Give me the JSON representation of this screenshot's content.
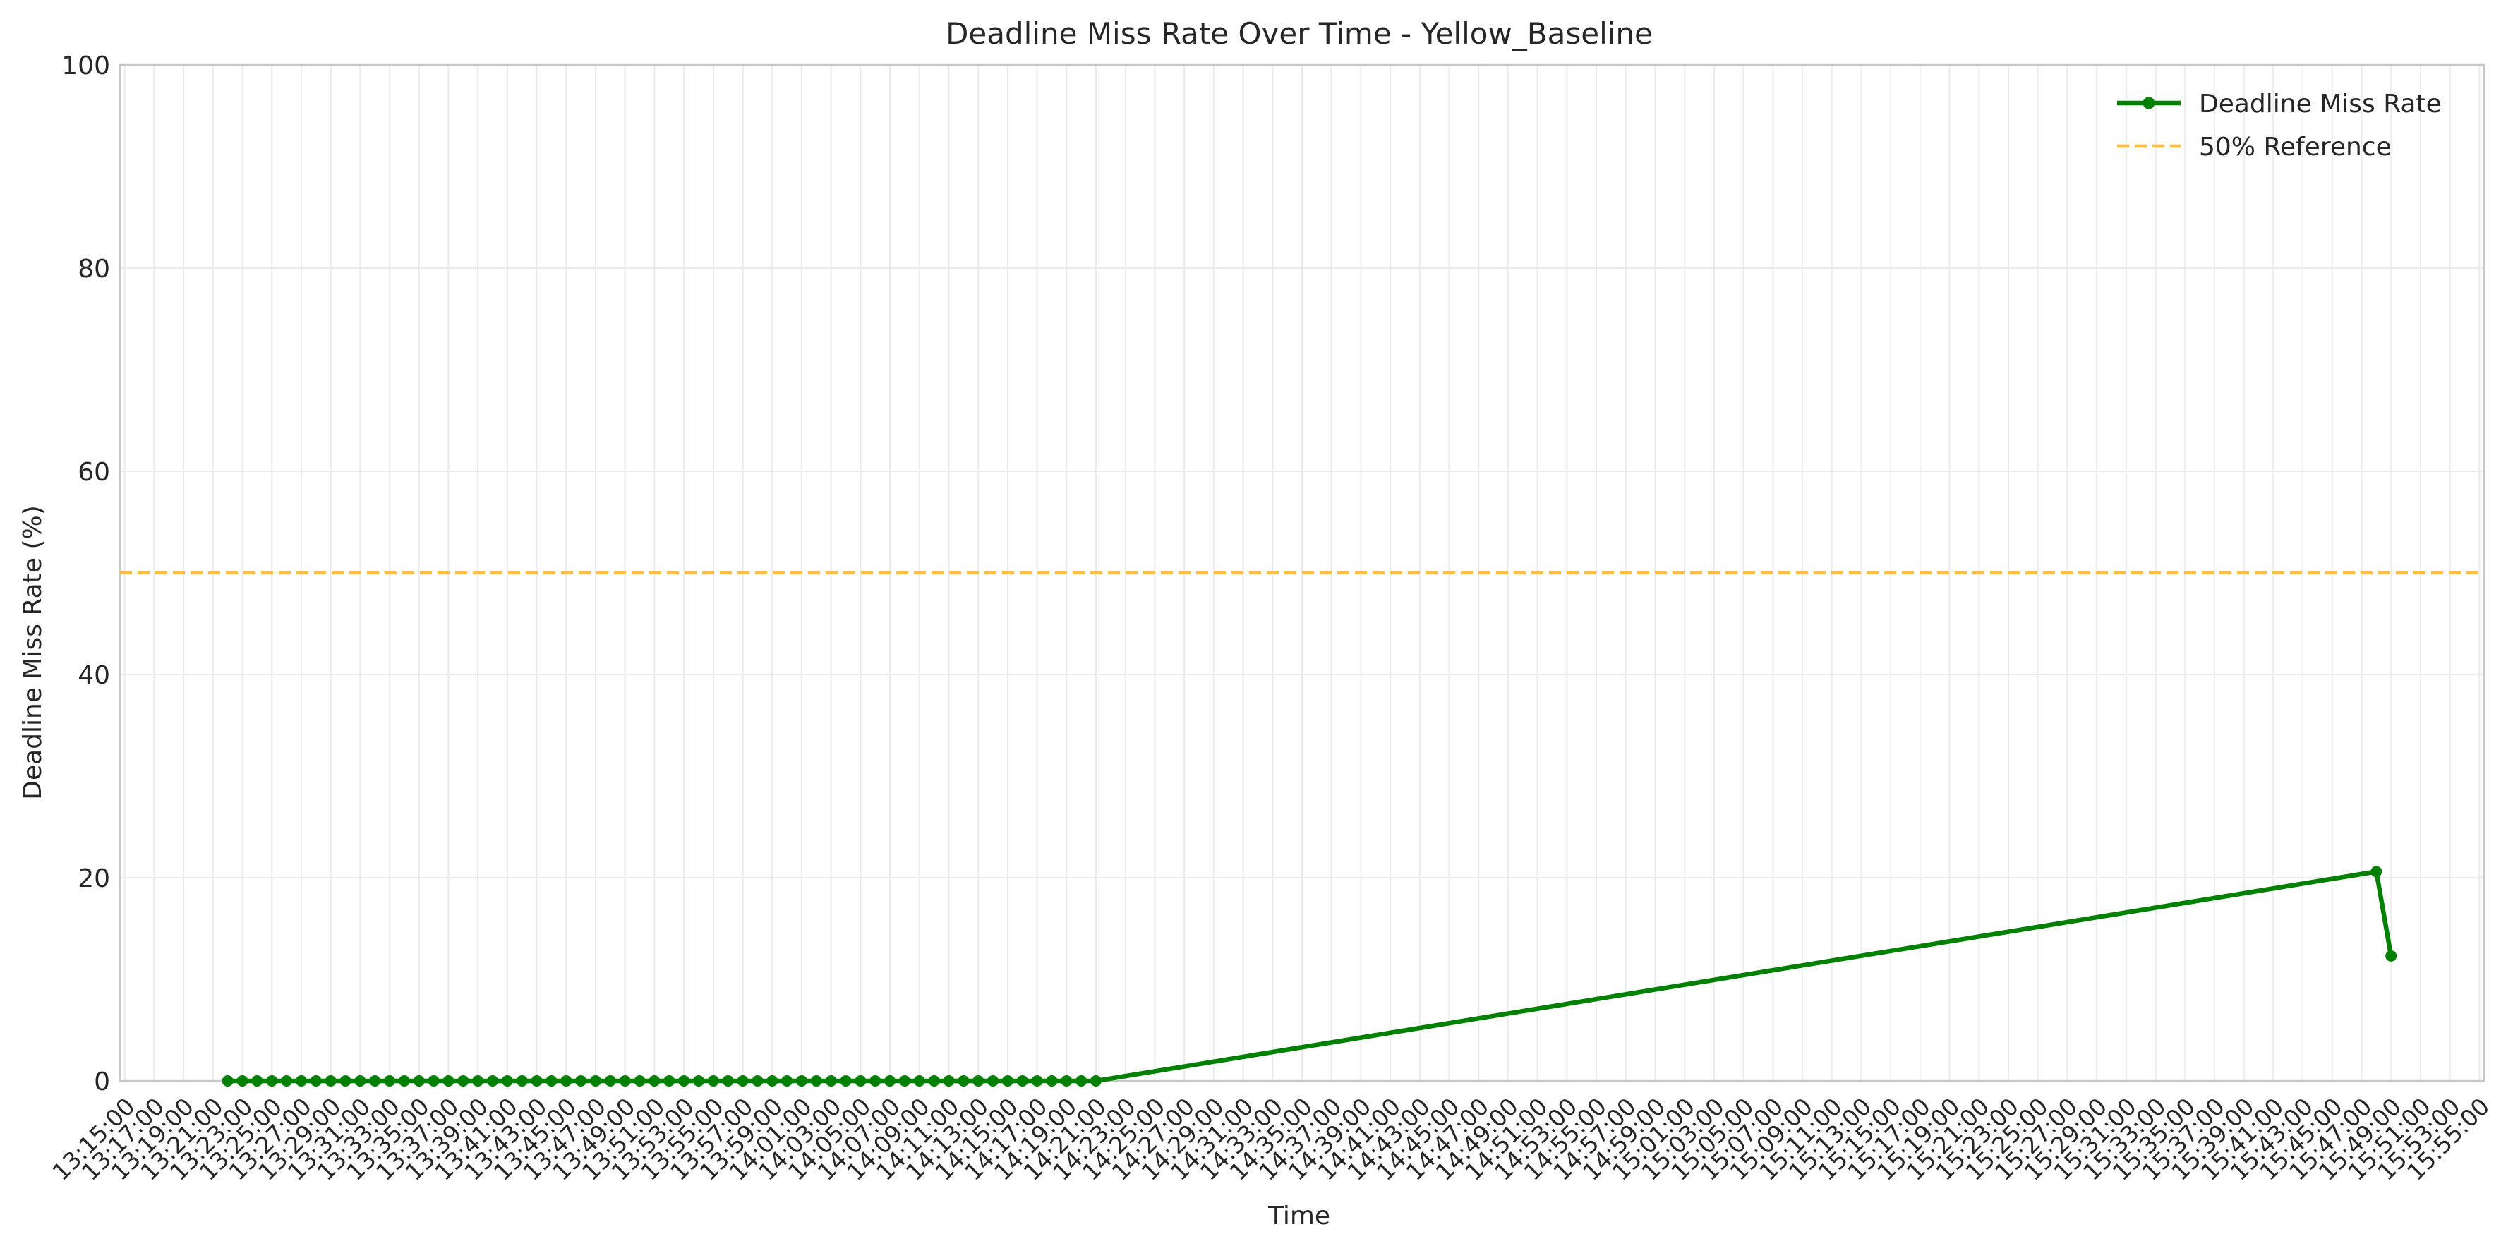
{
  "chart_data": {
    "type": "line",
    "title": "Deadline Miss Rate Over Time - Yellow_Baseline",
    "xlabel": "Time",
    "ylabel": "Deadline Miss Rate (%)",
    "ylim": [
      0,
      100
    ],
    "yticks": [
      0,
      20,
      40,
      60,
      80,
      100
    ],
    "xlim": [
      "13:15:00",
      "15:55:00"
    ],
    "xtick_step_minutes": 2,
    "xtick_labels": [
      "13:15:00",
      "13:17:00",
      "13:19:00",
      "13:21:00",
      "13:23:00",
      "13:25:00",
      "13:27:00",
      "13:29:00",
      "13:31:00",
      "13:33:00",
      "13:35:00",
      "13:37:00",
      "13:39:00",
      "13:41:00",
      "13:43:00",
      "13:45:00",
      "13:47:00",
      "13:49:00",
      "13:51:00",
      "13:53:00",
      "13:55:00",
      "13:57:00",
      "13:59:00",
      "14:01:00",
      "14:03:00",
      "14:05:00",
      "14:07:00",
      "14:09:00",
      "14:11:00",
      "14:13:00",
      "14:15:00",
      "14:17:00",
      "14:19:00",
      "14:21:00",
      "14:23:00",
      "14:25:00",
      "14:27:00",
      "14:29:00",
      "14:31:00",
      "14:33:00",
      "14:35:00",
      "14:37:00",
      "14:39:00",
      "14:41:00",
      "14:43:00",
      "14:45:00",
      "14:47:00",
      "14:49:00",
      "14:51:00",
      "14:53:00",
      "14:55:00",
      "14:57:00",
      "14:59:00",
      "15:01:00",
      "15:03:00",
      "15:05:00",
      "15:07:00",
      "15:09:00",
      "15:11:00",
      "15:13:00",
      "15:15:00",
      "15:17:00",
      "15:19:00",
      "15:21:00",
      "15:23:00",
      "15:25:00",
      "15:27:00",
      "15:29:00",
      "15:31:00",
      "15:33:00",
      "15:35:00",
      "15:37:00",
      "15:39:00",
      "15:41:00",
      "15:43:00",
      "15:45:00",
      "15:47:00",
      "15:49:00",
      "15:51:00",
      "15:53:00",
      "15:55:00"
    ],
    "grid": true,
    "legend_position": "top-right",
    "series": [
      {
        "name": "Deadline Miss Rate",
        "color": "#008000",
        "marker": "circle",
        "x": [
          "13:22:00",
          "13:23:00",
          "13:24:00",
          "13:25:00",
          "13:26:00",
          "13:27:00",
          "13:28:00",
          "13:29:00",
          "13:30:00",
          "13:31:00",
          "13:32:00",
          "13:33:00",
          "13:34:00",
          "13:35:00",
          "13:36:00",
          "13:37:00",
          "13:38:00",
          "13:39:00",
          "13:40:00",
          "13:41:00",
          "13:42:00",
          "13:43:00",
          "13:44:00",
          "13:45:00",
          "13:46:00",
          "13:47:00",
          "13:48:00",
          "13:49:00",
          "13:50:00",
          "13:51:00",
          "13:52:00",
          "13:53:00",
          "13:54:00",
          "13:55:00",
          "13:56:00",
          "13:57:00",
          "13:58:00",
          "13:59:00",
          "14:00:00",
          "14:01:00",
          "14:02:00",
          "14:03:00",
          "14:04:00",
          "14:05:00",
          "14:06:00",
          "14:07:00",
          "14:08:00",
          "14:09:00",
          "14:10:00",
          "14:11:00",
          "14:12:00",
          "14:13:00",
          "14:14:00",
          "14:15:00",
          "14:16:00",
          "14:17:00",
          "14:18:00",
          "14:19:00",
          "14:20:00",
          "14:21:00",
          "15:48:00",
          "15:49:00"
        ],
        "values": [
          0,
          0,
          0,
          0,
          0,
          0,
          0,
          0,
          0,
          0,
          0,
          0,
          0,
          0,
          0,
          0,
          0,
          0,
          0,
          0,
          0,
          0,
          0,
          0,
          0,
          0,
          0,
          0,
          0,
          0,
          0,
          0,
          0,
          0,
          0,
          0,
          0,
          0,
          0,
          0,
          0,
          0,
          0,
          0,
          0,
          0,
          0,
          0,
          0,
          0,
          0,
          0,
          0,
          0,
          0,
          0,
          0,
          0,
          0,
          0,
          20.6,
          12.3
        ]
      }
    ],
    "reference_lines": [
      {
        "name": "50% Reference",
        "y": 50,
        "color": "#FFB833",
        "style": "dashed"
      }
    ]
  }
}
